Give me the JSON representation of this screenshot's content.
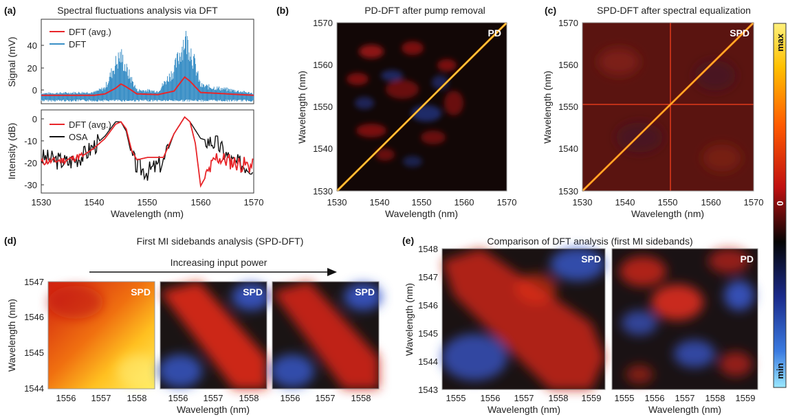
{
  "panels": {
    "a": {
      "label": "(a)",
      "title": "Spectral fluctuations analysis via DFT",
      "top": {
        "ylabel": "Signal (mV)",
        "yticks": [
          "40",
          "20",
          "0"
        ],
        "legend": [
          "DFT (avg.)",
          "DFT"
        ]
      },
      "bottom": {
        "ylabel": "Intensity (dB)",
        "yticks": [
          "0",
          "-10",
          "-20",
          "-30"
        ],
        "legend": [
          "DFT (avg.)",
          "OSA"
        ]
      },
      "xticks": [
        "1530",
        "1540",
        "1550",
        "1560",
        "1570"
      ],
      "xlabel": "Wavelength (nm)"
    },
    "b": {
      "label": "(b)",
      "title": "PD-DFT after pump removal",
      "tag": "PD",
      "xticks": [
        "1530",
        "1540",
        "1550",
        "1560",
        "1570"
      ],
      "yticks": [
        "1570",
        "1560",
        "1550",
        "1540",
        "1530"
      ],
      "xlabel": "Wavelength (nm)",
      "ylabel": "Wavelength (nm)"
    },
    "c": {
      "label": "(c)",
      "title": "SPD-DFT after spectral equalization",
      "tag": "SPD",
      "xticks": [
        "1530",
        "1540",
        "1550",
        "1560",
        "1570"
      ],
      "yticks": [
        "1570",
        "1560",
        "1550",
        "1540",
        "1530"
      ],
      "xlabel": "Wavelength (nm)",
      "ylabel": "Wavelength (nm)"
    },
    "d": {
      "label": "(d)",
      "title": "First MI sidebands analysis (SPD-DFT)",
      "arrow_label": "Increasing input power",
      "tags": [
        "SPD",
        "SPD",
        "SPD"
      ],
      "xticks": [
        "1556",
        "1557",
        "1558"
      ],
      "yticks": [
        "1547",
        "1546",
        "1545",
        "1544"
      ],
      "xlabel": "Wavelength (nm)",
      "ylabel": "Wavelength (nm)"
    },
    "e": {
      "label": "(e)",
      "title": "Comparison of DFT analysis (first MI sidebands)",
      "tags": [
        "SPD",
        "PD"
      ],
      "xticks": [
        "1555",
        "1556",
        "1557",
        "1558",
        "1559"
      ],
      "yticks": [
        "1548",
        "1547",
        "1546",
        "1545",
        "1544",
        "1543"
      ],
      "xlabel": "Wavelength (nm)",
      "ylabel": "Wavelength (nm)"
    }
  },
  "colorbar": {
    "max_label": "max",
    "zero_label": "0",
    "min_label": "min"
  },
  "colors": {
    "avg": "#e8262a",
    "dft": "#3a8fc6",
    "osa": "#111111"
  },
  "chart_data": [
    {
      "type": "line",
      "panel": "a-top",
      "xlim": [
        1530,
        1570
      ],
      "ylim": [
        -5,
        55
      ],
      "series": [
        {
          "name": "DFT (avg.)",
          "x": [
            1530,
            1540,
            1542,
            1544,
            1545,
            1546,
            1548,
            1552,
            1555,
            1557,
            1558,
            1560,
            1570
          ],
          "y": [
            1,
            1,
            2,
            6,
            9,
            7,
            2,
            1.5,
            4,
            14,
            11,
            3,
            1
          ]
        },
        {
          "name": "DFT",
          "x": [
            1530,
            1540,
            1542,
            1544,
            1545,
            1546,
            1548,
            1552,
            1555,
            1557,
            1558,
            1560,
            1570
          ],
          "y": [
            3,
            4,
            8,
            30,
            37,
            25,
            6,
            5,
            24,
            52,
            45,
            10,
            3
          ]
        }
      ]
    },
    {
      "type": "line",
      "panel": "a-bottom",
      "xlim": [
        1530,
        1570
      ],
      "ylim": [
        -33,
        2
      ],
      "series": [
        {
          "name": "DFT (avg.)",
          "x": [
            1530,
            1535,
            1538,
            1540,
            1542,
            1544,
            1545,
            1546,
            1547,
            1548,
            1550,
            1553,
            1555,
            1557,
            1558,
            1559,
            1560,
            1563,
            1566,
            1570
          ],
          "y": [
            -20,
            -19,
            -17,
            -14,
            -10,
            -4,
            -3,
            -6,
            -15,
            -19,
            -18,
            -18,
            -8,
            -1,
            -3,
            -12,
            -30,
            -18,
            -20,
            -22
          ]
        },
        {
          "name": "OSA",
          "x": [
            1530,
            1535,
            1538,
            1540,
            1542,
            1544,
            1545,
            1546,
            1547,
            1548,
            1550,
            1553,
            1555,
            1557,
            1558,
            1560,
            1563,
            1566,
            1570
          ],
          "y": [
            -18,
            -20,
            -17,
            -13,
            -9,
            -3,
            -3,
            -7,
            -17,
            -22,
            -24,
            -20,
            -8,
            -1,
            -3,
            -10,
            -12,
            -20,
            -22
          ]
        }
      ]
    }
  ]
}
